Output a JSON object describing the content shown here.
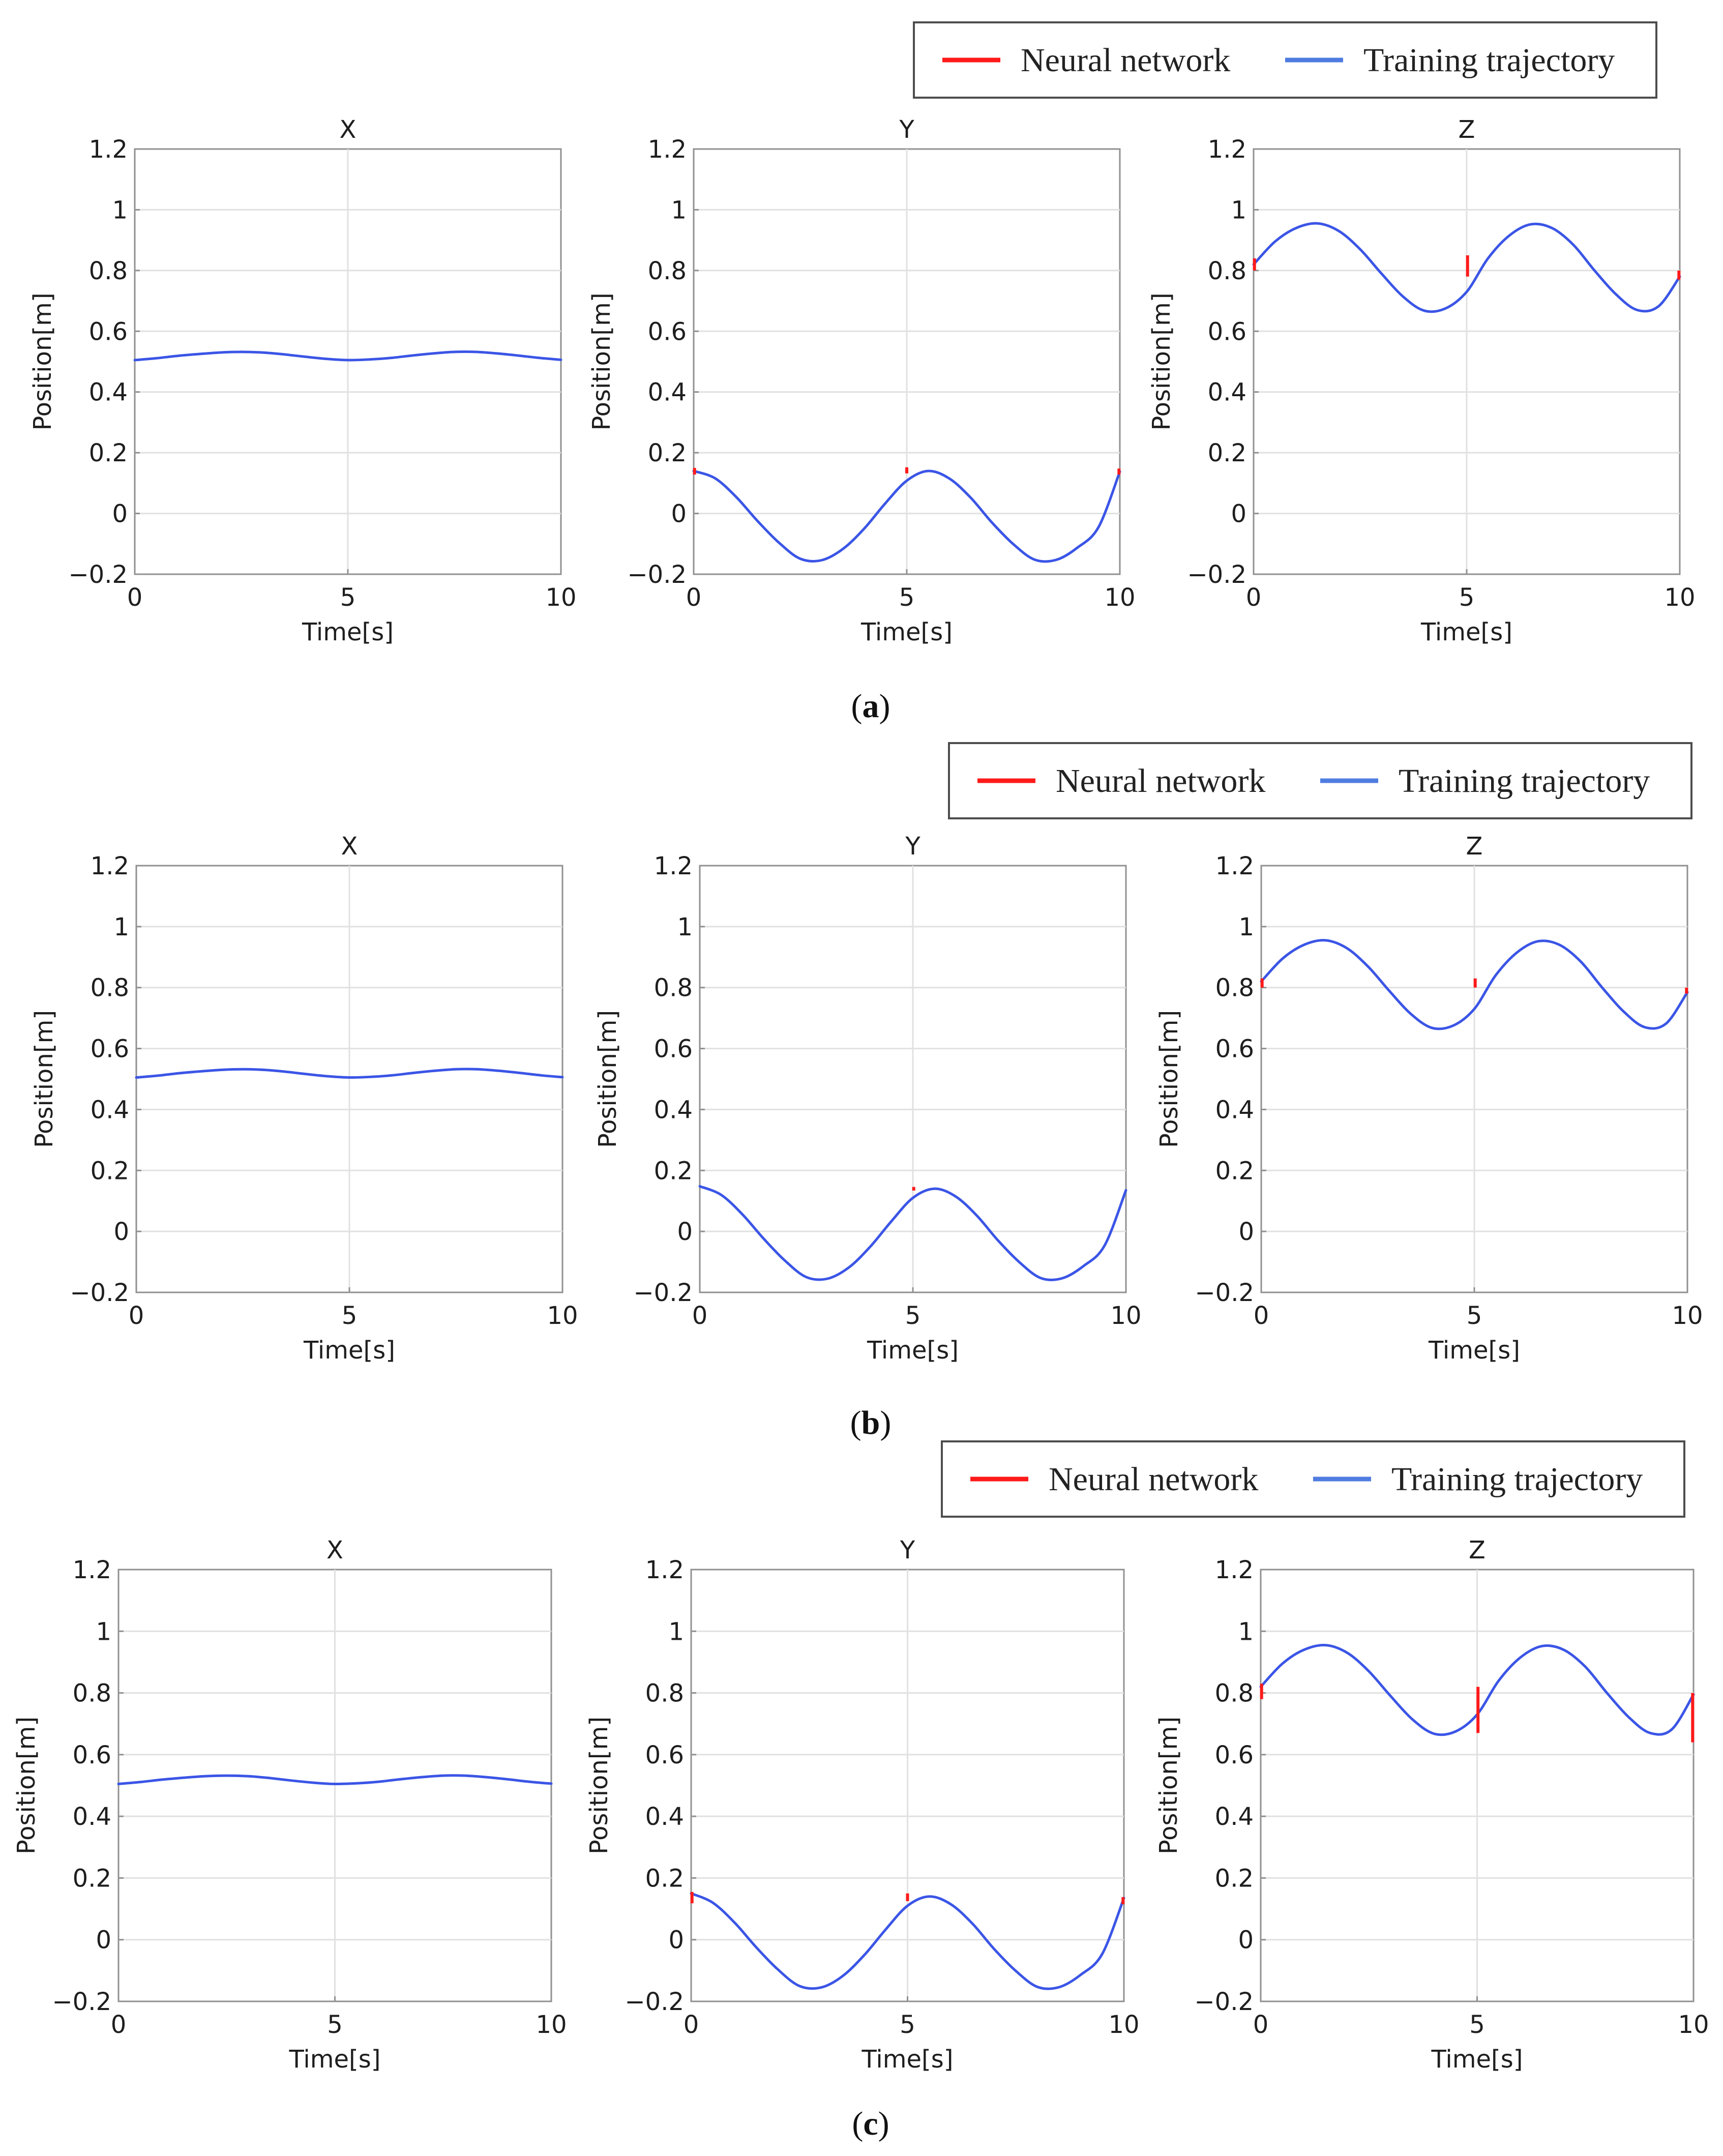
{
  "legend": {
    "nn_label": "Neural network",
    "tt_label": "Training trajectory"
  },
  "colors": {
    "neural_network": "#ff1a1a",
    "training_trajectory": "#3b55e6",
    "legend_training": "#4f7ce0"
  },
  "panels": [
    {
      "caption": "a"
    },
    {
      "caption": "b"
    },
    {
      "caption": "c"
    }
  ],
  "chart_data": [
    {
      "panel": "a",
      "type": "line",
      "xlabel": "Time[s]",
      "ylabel": "Position[m]",
      "xlim": [
        0,
        10
      ],
      "ylim": [
        -0.2,
        1.2
      ],
      "xticks": [
        "0",
        "5",
        "10"
      ],
      "yticks": [
        "−0.2",
        "0",
        "0.2",
        "0.4",
        "0.6",
        "0.8",
        "1",
        "1.2"
      ],
      "grid": true,
      "legend_position": "top-right",
      "subplots": [
        {
          "title": "X",
          "series": [
            {
              "name": "Training trajectory",
              "x": [
                0,
                0.5,
                1,
                1.5,
                2,
                2.5,
                3,
                3.5,
                4,
                4.5,
                5,
                5.5,
                6,
                6.5,
                7,
                7.5,
                8,
                8.5,
                9,
                9.5,
                10
              ],
              "y": [
                0.505,
                0.511,
                0.519,
                0.525,
                0.53,
                0.532,
                0.53,
                0.524,
                0.516,
                0.509,
                0.505,
                0.507,
                0.512,
                0.52,
                0.527,
                0.532,
                0.532,
                0.527,
                0.52,
                0.512,
                0.506
              ]
            },
            {
              "name": "Neural network",
              "spikes": []
            }
          ]
        },
        {
          "title": "Y",
          "series": [
            {
              "name": "Training trajectory",
              "x": [
                0,
                0.5,
                1,
                1.5,
                2,
                2.5,
                3,
                3.5,
                4,
                4.5,
                5,
                5.5,
                6,
                6.5,
                7,
                7.5,
                8,
                8.5,
                9,
                9.5,
                10
              ],
              "y": [
                0.14,
                0.116,
                0.054,
                -0.025,
                -0.096,
                -0.149,
                -0.154,
                -0.117,
                -0.05,
                0.034,
                0.108,
                0.14,
                0.115,
                0.052,
                -0.03,
                -0.101,
                -0.152,
                -0.153,
                -0.113,
                -0.045,
                0.138
              ]
            },
            {
              "name": "Neural network",
              "spikes": [
                {
                  "t": 0.02,
                  "y0": 0.128,
                  "y1": 0.15
                },
                {
                  "t": 5.0,
                  "y0": 0.132,
                  "y1": 0.152
                },
                {
                  "t": 9.98,
                  "y0": 0.128,
                  "y1": 0.148
                }
              ]
            }
          ]
        },
        {
          "title": "Z",
          "series": [
            {
              "name": "Training trajectory",
              "x": [
                0,
                0.5,
                1,
                1.5,
                2,
                2.5,
                3,
                3.5,
                4,
                4.5,
                5,
                5.5,
                6,
                6.5,
                7,
                7.5,
                8,
                8.5,
                9,
                9.5,
                10
              ],
              "y": [
                0.82,
                0.895,
                0.94,
                0.955,
                0.93,
                0.87,
                0.79,
                0.715,
                0.668,
                0.675,
                0.73,
                0.84,
                0.915,
                0.952,
                0.94,
                0.885,
                0.8,
                0.722,
                0.67,
                0.682,
                0.78
              ]
            },
            {
              "name": "Neural network",
              "spikes": [
                {
                  "t": 0.02,
                  "y0": 0.8,
                  "y1": 0.84
                },
                {
                  "t": 5.02,
                  "y0": 0.78,
                  "y1": 0.85
                },
                {
                  "t": 9.98,
                  "y0": 0.77,
                  "y1": 0.8
                }
              ]
            }
          ]
        }
      ]
    },
    {
      "panel": "b",
      "type": "line",
      "xlabel": "Time[s]",
      "ylabel": "Position[m]",
      "xlim": [
        0,
        10
      ],
      "ylim": [
        -0.2,
        1.2
      ],
      "xticks": [
        "0",
        "5",
        "10"
      ],
      "yticks": [
        "−0.2",
        "0",
        "0.2",
        "0.4",
        "0.6",
        "0.8",
        "1",
        "1.2"
      ],
      "grid": true,
      "legend_position": "top-right",
      "subplots": [
        {
          "title": "X",
          "series": [
            {
              "name": "Training trajectory",
              "x": [
                0,
                0.5,
                1,
                1.5,
                2,
                2.5,
                3,
                3.5,
                4,
                4.5,
                5,
                5.5,
                6,
                6.5,
                7,
                7.5,
                8,
                8.5,
                9,
                9.5,
                10
              ],
              "y": [
                0.505,
                0.511,
                0.519,
                0.525,
                0.53,
                0.532,
                0.53,
                0.524,
                0.516,
                0.509,
                0.505,
                0.507,
                0.512,
                0.52,
                0.527,
                0.532,
                0.532,
                0.527,
                0.52,
                0.512,
                0.506
              ]
            },
            {
              "name": "Neural network",
              "spikes": []
            }
          ]
        },
        {
          "title": "Y",
          "series": [
            {
              "name": "Training trajectory",
              "x": [
                0,
                0.5,
                1,
                1.5,
                2,
                2.5,
                3,
                3.5,
                4,
                4.5,
                5,
                5.5,
                6,
                6.5,
                7,
                7.5,
                8,
                8.5,
                9,
                9.5,
                10
              ],
              "y": [
                0.148,
                0.12,
                0.056,
                -0.024,
                -0.096,
                -0.15,
                -0.155,
                -0.118,
                -0.05,
                0.034,
                0.11,
                0.14,
                0.115,
                0.052,
                -0.03,
                -0.101,
                -0.153,
                -0.154,
                -0.114,
                -0.046,
                0.135
              ]
            },
            {
              "name": "Neural network",
              "spikes": [
                {
                  "t": 5.02,
                  "y0": 0.134,
                  "y1": 0.146
                }
              ]
            }
          ]
        },
        {
          "title": "Z",
          "series": [
            {
              "name": "Training trajectory",
              "x": [
                0,
                0.5,
                1,
                1.5,
                2,
                2.5,
                3,
                3.5,
                4,
                4.5,
                5,
                5.5,
                6,
                6.5,
                7,
                7.5,
                8,
                8.5,
                9,
                9.5,
                10
              ],
              "y": [
                0.82,
                0.895,
                0.94,
                0.955,
                0.93,
                0.87,
                0.79,
                0.715,
                0.668,
                0.675,
                0.73,
                0.84,
                0.915,
                0.952,
                0.94,
                0.885,
                0.8,
                0.722,
                0.67,
                0.682,
                0.785
              ]
            },
            {
              "name": "Neural network",
              "spikes": [
                {
                  "t": 0.02,
                  "y0": 0.8,
                  "y1": 0.83
                },
                {
                  "t": 5.02,
                  "y0": 0.8,
                  "y1": 0.83
                },
                {
                  "t": 9.98,
                  "y0": 0.78,
                  "y1": 0.8
                }
              ]
            }
          ]
        }
      ]
    },
    {
      "panel": "c",
      "type": "line",
      "xlabel": "Time[s]",
      "ylabel": "Position[m]",
      "xlim": [
        0,
        10
      ],
      "ylim": [
        -0.2,
        1.2
      ],
      "xticks": [
        "0",
        "5",
        "10"
      ],
      "yticks": [
        "−0.2",
        "0",
        "0.2",
        "0.4",
        "0.6",
        "0.8",
        "1",
        "1.2"
      ],
      "grid": true,
      "legend_position": "top-right",
      "subplots": [
        {
          "title": "X",
          "series": [
            {
              "name": "Training trajectory",
              "x": [
                0,
                0.5,
                1,
                1.5,
                2,
                2.5,
                3,
                3.5,
                4,
                4.5,
                5,
                5.5,
                6,
                6.5,
                7,
                7.5,
                8,
                8.5,
                9,
                9.5,
                10
              ],
              "y": [
                0.505,
                0.511,
                0.519,
                0.525,
                0.53,
                0.532,
                0.53,
                0.524,
                0.516,
                0.509,
                0.505,
                0.507,
                0.512,
                0.52,
                0.527,
                0.532,
                0.532,
                0.527,
                0.52,
                0.512,
                0.506
              ]
            },
            {
              "name": "Neural network",
              "spikes": []
            }
          ]
        },
        {
          "title": "Y",
          "series": [
            {
              "name": "Training trajectory",
              "x": [
                0,
                0.5,
                1,
                1.5,
                2,
                2.5,
                3,
                3.5,
                4,
                4.5,
                5,
                5.5,
                6,
                6.5,
                7,
                7.5,
                8,
                8.5,
                9,
                9.5,
                10
              ],
              "y": [
                0.15,
                0.12,
                0.056,
                -0.024,
                -0.096,
                -0.15,
                -0.155,
                -0.118,
                -0.05,
                0.034,
                0.11,
                0.14,
                0.115,
                0.052,
                -0.03,
                -0.101,
                -0.153,
                -0.154,
                -0.114,
                -0.046,
                0.135
              ]
            },
            {
              "name": "Neural network",
              "spikes": [
                {
                  "t": 0.02,
                  "y0": 0.118,
                  "y1": 0.155
                },
                {
                  "t": 5.0,
                  "y0": 0.125,
                  "y1": 0.15
                },
                {
                  "t": 9.98,
                  "y0": 0.115,
                  "y1": 0.138
                }
              ]
            }
          ]
        },
        {
          "title": "Z",
          "series": [
            {
              "name": "Training trajectory",
              "x": [
                0,
                0.5,
                1,
                1.5,
                2,
                2.5,
                3,
                3.5,
                4,
                4.5,
                5,
                5.5,
                6,
                6.5,
                7,
                7.5,
                8,
                8.5,
                9,
                9.5,
                10
              ],
              "y": [
                0.82,
                0.895,
                0.94,
                0.955,
                0.93,
                0.87,
                0.79,
                0.715,
                0.668,
                0.675,
                0.73,
                0.84,
                0.915,
                0.952,
                0.94,
                0.885,
                0.8,
                0.722,
                0.67,
                0.682,
                0.795
              ]
            },
            {
              "name": "Neural network",
              "spikes": [
                {
                  "t": 0.02,
                  "y0": 0.78,
                  "y1": 0.83
                },
                {
                  "t": 5.02,
                  "y0": 0.67,
                  "y1": 0.82
                },
                {
                  "t": 9.98,
                  "y0": 0.64,
                  "y1": 0.8
                }
              ]
            }
          ]
        }
      ]
    }
  ]
}
